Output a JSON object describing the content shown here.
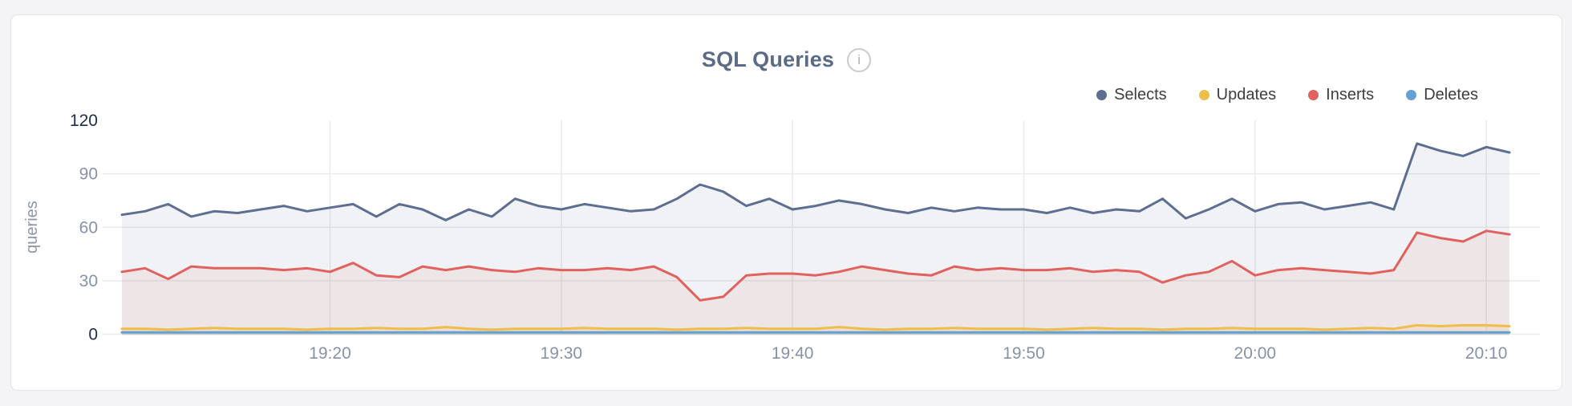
{
  "title": "SQL Queries",
  "info_icon_glyph": "i",
  "chart_data": {
    "type": "area",
    "title": "SQL Queries",
    "ylabel": "queries",
    "xlabel": "",
    "ylim": [
      0,
      120
    ],
    "yticks": [
      0,
      30,
      60,
      90,
      120
    ],
    "emphasized_yticks": [
      0,
      120
    ],
    "xticks": [
      "19:20",
      "19:30",
      "19:40",
      "19:50",
      "20:00",
      "20:10"
    ],
    "grid": true,
    "legend_position": "top-right",
    "x": [
      "19:11",
      "19:12",
      "19:13",
      "19:14",
      "19:15",
      "19:16",
      "19:17",
      "19:18",
      "19:19",
      "19:20",
      "19:21",
      "19:22",
      "19:23",
      "19:24",
      "19:25",
      "19:26",
      "19:27",
      "19:28",
      "19:29",
      "19:30",
      "19:31",
      "19:32",
      "19:33",
      "19:34",
      "19:35",
      "19:36",
      "19:37",
      "19:38",
      "19:39",
      "19:40",
      "19:41",
      "19:42",
      "19:43",
      "19:44",
      "19:45",
      "19:46",
      "19:47",
      "19:48",
      "19:49",
      "19:50",
      "19:51",
      "19:52",
      "19:53",
      "19:54",
      "19:55",
      "19:56",
      "19:57",
      "19:58",
      "19:59",
      "20:00",
      "20:01",
      "20:02",
      "20:03",
      "20:04",
      "20:05",
      "20:06",
      "20:07",
      "20:08",
      "20:09",
      "20:10",
      "20:11"
    ],
    "series": [
      {
        "name": "Selects",
        "color": "#5d6e91",
        "fill_opacity": 0.09,
        "values": [
          67,
          69,
          73,
          66,
          69,
          68,
          70,
          72,
          69,
          71,
          73,
          66,
          73,
          70,
          64,
          70,
          66,
          76,
          72,
          70,
          73,
          71,
          69,
          70,
          76,
          84,
          80,
          72,
          76,
          70,
          72,
          75,
          73,
          70,
          68,
          71,
          69,
          71,
          70,
          70,
          68,
          71,
          68,
          70,
          69,
          76,
          65,
          70,
          76,
          69,
          73,
          74,
          70,
          72,
          74,
          70,
          107,
          103,
          100,
          105,
          102
        ]
      },
      {
        "name": "Updates",
        "color": "#eebd4a",
        "fill_opacity": 0.12,
        "values": [
          3,
          3,
          2.5,
          3,
          3.5,
          3,
          3,
          3,
          2.5,
          3,
          3,
          3.5,
          3,
          3,
          4,
          3,
          2.5,
          3,
          3,
          3,
          3.5,
          3,
          3,
          3,
          2.5,
          3,
          3,
          3.5,
          3,
          3,
          3,
          4,
          3,
          2.5,
          3,
          3,
          3.5,
          3,
          3,
          3,
          2.5,
          3,
          3.5,
          3,
          3,
          2.5,
          3,
          3,
          3.5,
          3,
          3,
          3,
          2.5,
          3,
          3.5,
          3,
          5,
          4.5,
          5,
          5,
          4.5
        ]
      },
      {
        "name": "Inserts",
        "color": "#e0615e",
        "fill_opacity": 0.09,
        "values": [
          35,
          37,
          31,
          38,
          37,
          37,
          37,
          36,
          37,
          35,
          40,
          33,
          32,
          38,
          36,
          38,
          36,
          35,
          37,
          36,
          36,
          37,
          36,
          38,
          32,
          19,
          21,
          33,
          34,
          34,
          33,
          35,
          38,
          36,
          34,
          33,
          38,
          36,
          37,
          36,
          36,
          37,
          35,
          36,
          35,
          29,
          33,
          35,
          41,
          33,
          36,
          37,
          36,
          35,
          34,
          36,
          57,
          54,
          52,
          58,
          56
        ]
      },
      {
        "name": "Deletes",
        "color": "#64a0d2",
        "fill_opacity": 0.12,
        "values": [
          1,
          1,
          1,
          1,
          1,
          1,
          1,
          1,
          1,
          1,
          1,
          1,
          1,
          1,
          1,
          1,
          1,
          1,
          1,
          1,
          1,
          1,
          1,
          1,
          1,
          1,
          1,
          1,
          1,
          1,
          1,
          1,
          1,
          1,
          1,
          1,
          1,
          1,
          1,
          1,
          1,
          1,
          1,
          1,
          1,
          1,
          1,
          1,
          1,
          1,
          1,
          1,
          1,
          1,
          1,
          1,
          1,
          1,
          1,
          1,
          1
        ]
      }
    ],
    "colors": {
      "grid": "#eaeaec",
      "tick_label": "#8791a8",
      "tick_label_emphasized": "#202e4e",
      "axis_title": "#8b94a9"
    }
  }
}
